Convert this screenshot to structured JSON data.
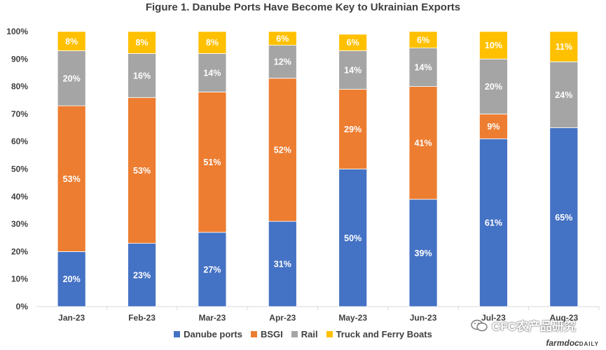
{
  "chart_data": {
    "type": "bar",
    "stacked": true,
    "title": "Figure  1. Danube Ports Have Become Key to Ukrainian  Exports",
    "categories": [
      "Jan-23",
      "Feb-23",
      "Mar-23",
      "Apr-23",
      "May-23",
      "Jun-23",
      "Jul-23",
      "Aug-23"
    ],
    "series": [
      {
        "name": "Danube ports",
        "color": "#4472C4",
        "values": [
          20,
          23,
          27,
          31,
          50,
          39,
          61,
          65
        ]
      },
      {
        "name": "BSGI",
        "color": "#ED7D31",
        "values": [
          53,
          53,
          51,
          52,
          29,
          41,
          9,
          0
        ]
      },
      {
        "name": "Rail",
        "color": "#A5A5A5",
        "values": [
          20,
          16,
          14,
          12,
          14,
          14,
          20,
          24
        ]
      },
      {
        "name": "Truck and Ferry Boats",
        "color": "#FFC000",
        "values": [
          8,
          8,
          8,
          6,
          6,
          6,
          10,
          11
        ]
      }
    ],
    "yticks": [
      "0%",
      "10%",
      "20%",
      "30%",
      "40%",
      "50%",
      "60%",
      "70%",
      "80%",
      "90%",
      "100%"
    ],
    "ylim": [
      0,
      100
    ],
    "xlabel": "",
    "ylabel": "",
    "grid": false,
    "legend": "bottom"
  },
  "watermark": "CFC农产品研究",
  "brand": {
    "main": "farmdoc",
    "suffix": "DAILY"
  }
}
